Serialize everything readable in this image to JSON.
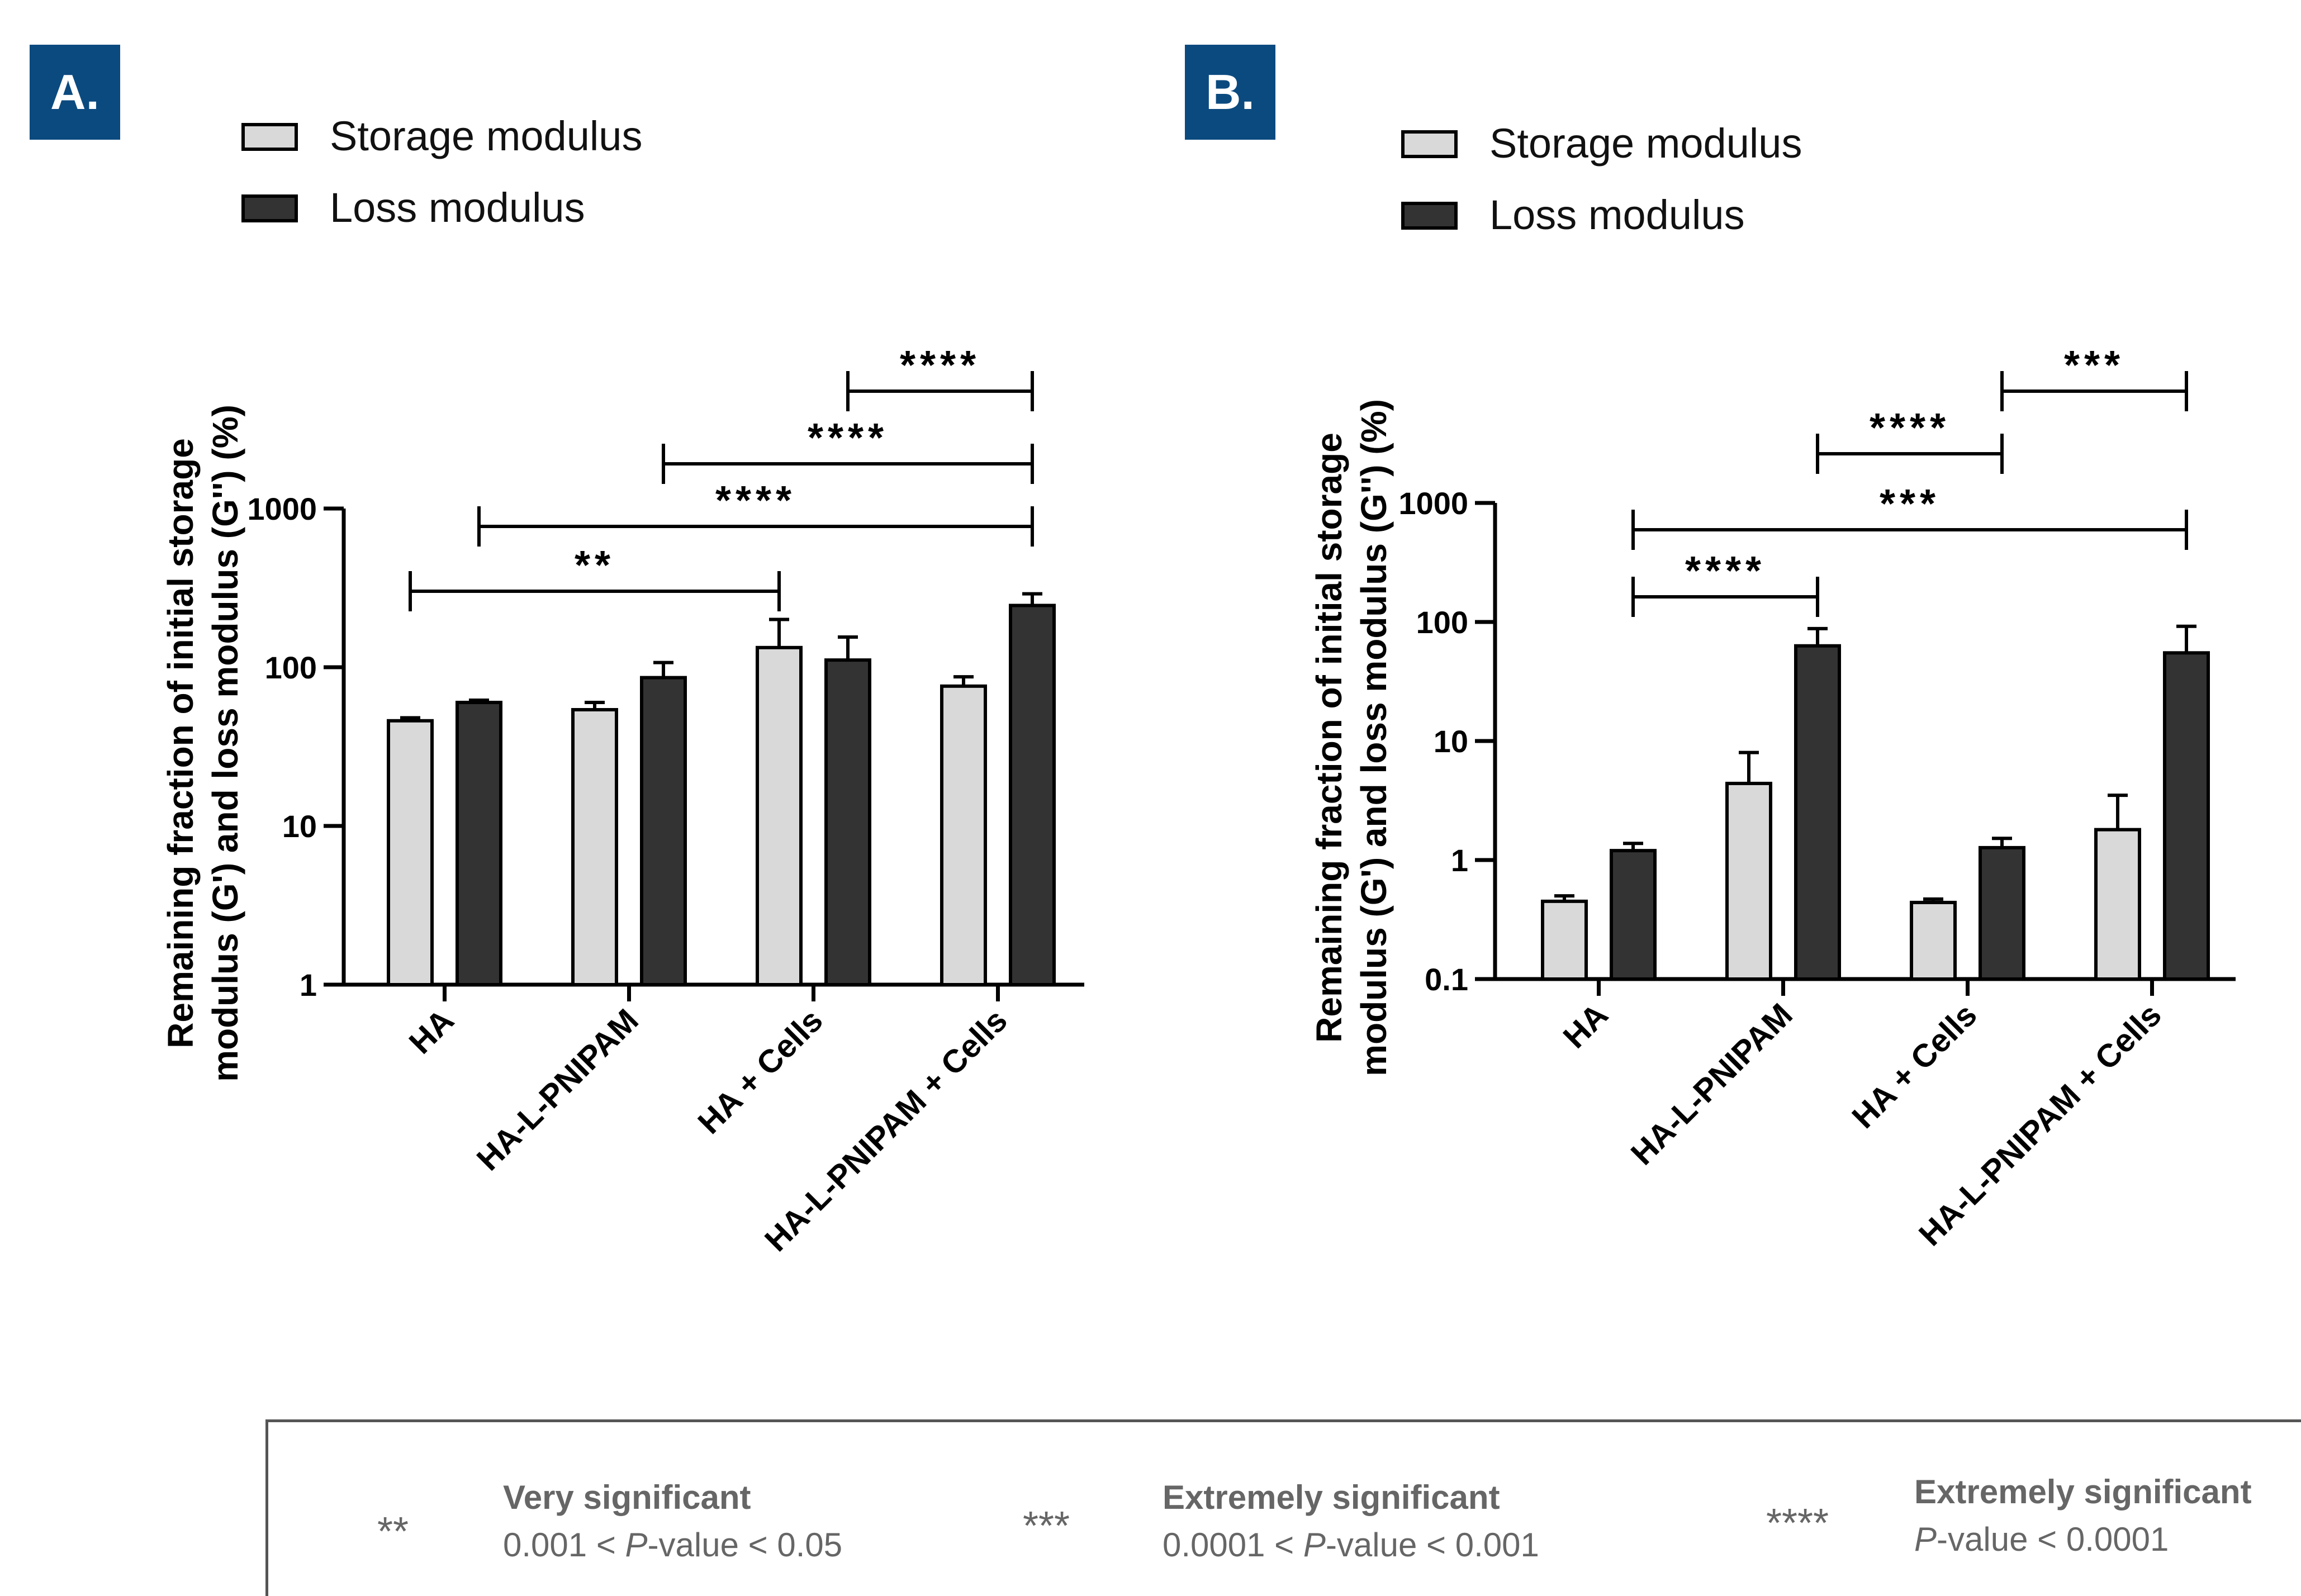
{
  "chart_data": [
    {
      "panel": "A.",
      "type": "bar",
      "scale": "log",
      "ylim": [
        1,
        1000
      ],
      "yticks": [
        "1",
        "10",
        "100",
        "1000"
      ],
      "ylabel_line1": "Remaining fraction of initial storage",
      "ylabel_line2": "modulus (G') and loss modulus (G'') (%)",
      "categories": [
        "HA",
        "HA-L-PNIPAM",
        "HA + Cells",
        "HA-L-PNIPAM + Cells"
      ],
      "legend": [
        "Storage modulus",
        "Loss modulus"
      ],
      "series": [
        {
          "name": "Storage modulus",
          "color": "#d9d9d9",
          "values": [
            46,
            54,
            133,
            76
          ],
          "errors": [
            48,
            60,
            200,
            87
          ]
        },
        {
          "name": "Loss modulus",
          "color": "#333333",
          "values": [
            60,
            86,
            111,
            245
          ],
          "errors": [
            62,
            107,
            155,
            290
          ]
        }
      ],
      "brackets": [
        {
          "from": 0,
          "to": 2,
          "label": "**"
        },
        {
          "from": 0.5,
          "to": 3,
          "label": "****"
        },
        {
          "from": 1.5,
          "to": 3,
          "label": "****"
        },
        {
          "from": 2.5,
          "to": 3,
          "label": "****"
        }
      ]
    },
    {
      "panel": "B.",
      "type": "bar",
      "scale": "log",
      "ylim": [
        0.1,
        1000
      ],
      "yticks": [
        "0.1",
        "1",
        "10",
        "100",
        "1000"
      ],
      "ylabel_line1": "Remaining fraction of initial storage",
      "ylabel_line2": "modulus (G') and loss modulus (G'') (%)",
      "categories": [
        "HA",
        "HA-L-PNIPAM",
        "HA + Cells",
        "HA-L-PNIPAM + Cells"
      ],
      "legend": [
        "Storage modulus",
        "Loss modulus"
      ],
      "series": [
        {
          "name": "Storage modulus",
          "color": "#d9d9d9",
          "values": [
            0.45,
            4.4,
            0.44,
            1.8
          ],
          "errors": [
            0.5,
            8,
            0.47,
            3.5
          ]
        },
        {
          "name": "Loss modulus",
          "color": "#333333",
          "values": [
            1.2,
            63,
            1.27,
            55
          ],
          "errors": [
            1.38,
            88,
            1.52,
            92
          ]
        }
      ],
      "brackets": [
        {
          "from": 0.5,
          "to": 1.5,
          "label": "****"
        },
        {
          "from": 0.5,
          "to": 3.5,
          "label": "***"
        },
        {
          "from": 1.5,
          "to": 2.5,
          "label": "****"
        },
        {
          "from": 2.5,
          "to": 3.5,
          "label": "***"
        }
      ]
    }
  ],
  "significance_legend": [
    {
      "stars": "**",
      "title": "Very significant",
      "range_pre": "0.001 < ",
      "range_p": "P",
      "range_post": "-value < 0.05"
    },
    {
      "stars": "***",
      "title": "Extremely significant",
      "range_pre": "0.0001 < ",
      "range_p": "P",
      "range_post": "-value < 0.001"
    },
    {
      "stars": "****",
      "title": "Extremely significant",
      "range_pre": "",
      "range_p": "P",
      "range_post": "-value < 0.0001"
    }
  ]
}
